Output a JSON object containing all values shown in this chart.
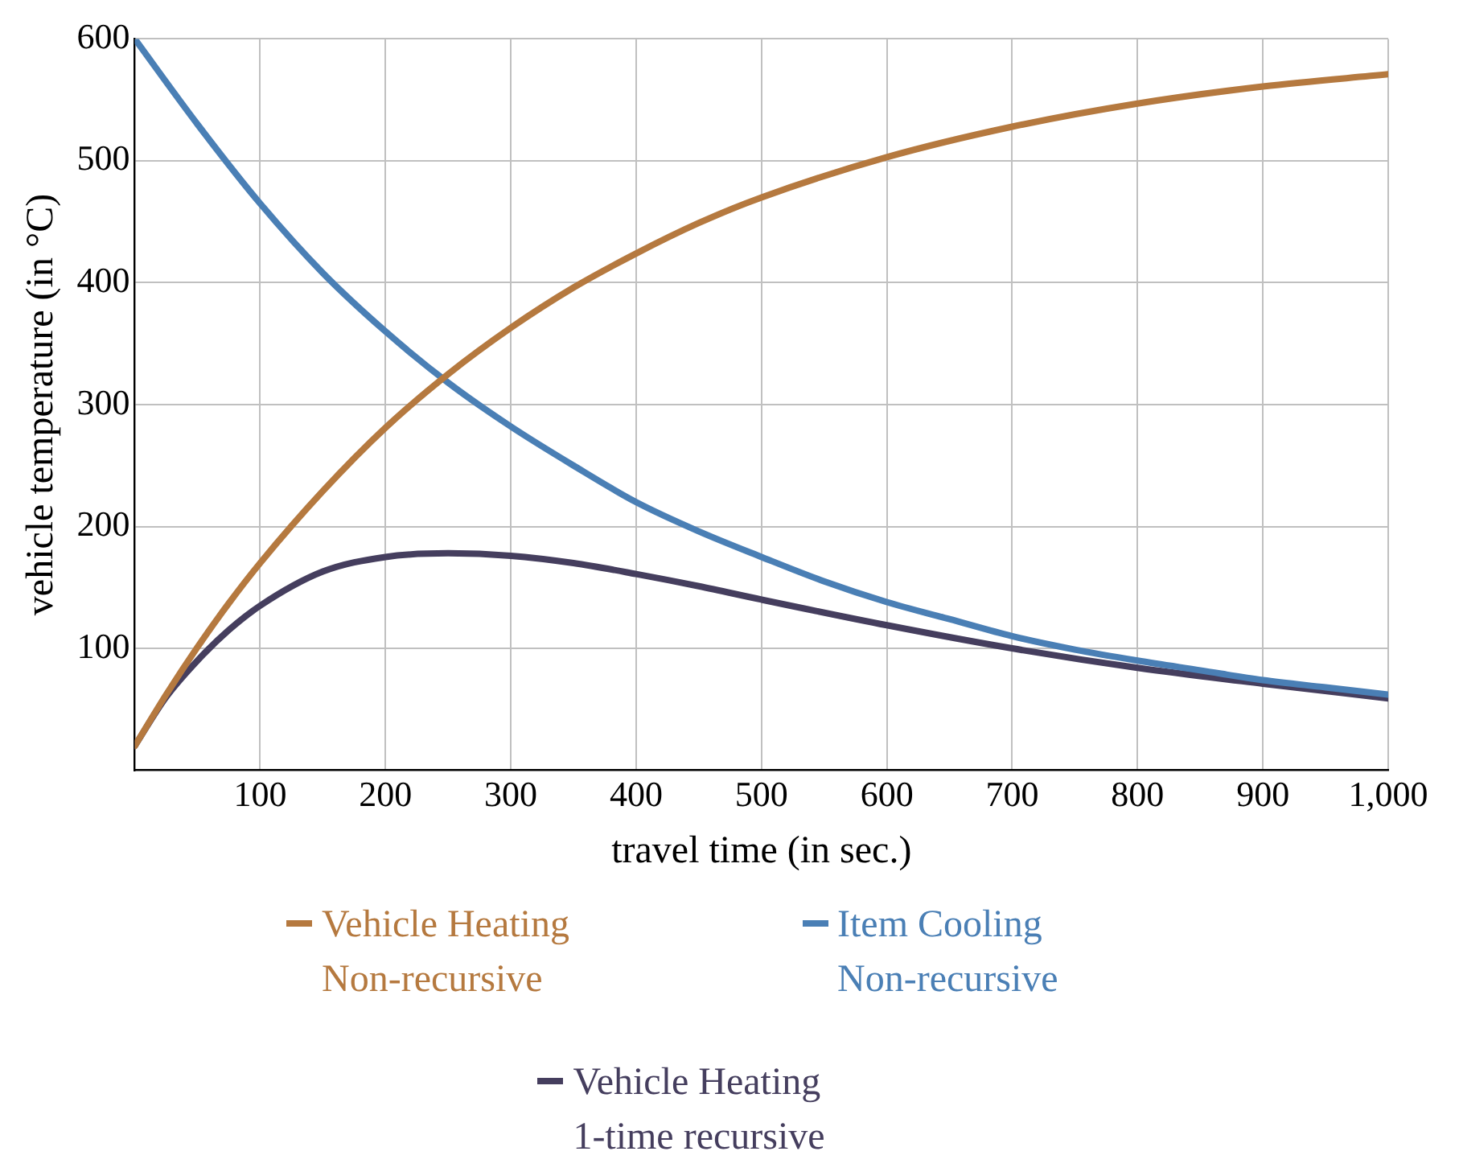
{
  "chart_data": {
    "type": "line",
    "xlabel": "travel time (in sec.)",
    "ylabel": "vehicle temperature (in °C)",
    "xlim": [
      0,
      1000
    ],
    "ylim": [
      0,
      600
    ],
    "xticks": [
      100,
      200,
      300,
      400,
      500,
      600,
      700,
      800,
      900,
      {
        "value": 1000,
        "label": "1,000"
      }
    ],
    "yticks": [
      100,
      200,
      300,
      400,
      500,
      600
    ],
    "grid": true,
    "legend": "bottom",
    "marker": "none",
    "line_style": "solid",
    "series": [
      {
        "name": "Vehicle Heating\nNon-recursive",
        "color": "#b5793f",
        "x": [
          0,
          25,
          50,
          75,
          100,
          150,
          200,
          250,
          300,
          350,
          400,
          450,
          500,
          600,
          700,
          800,
          900,
          1000
        ],
        "values": [
          20,
          62,
          101,
          137,
          170,
          229,
          281,
          325,
          363,
          396,
          424,
          449,
          470,
          503,
          528,
          547,
          561,
          571
        ]
      },
      {
        "name": "Item Cooling\nNon-recursive",
        "color": "#4a7fb5",
        "x": [
          0,
          50,
          100,
          150,
          200,
          250,
          300,
          350,
          400,
          450,
          500,
          550,
          600,
          650,
          700,
          750,
          800,
          850,
          900,
          950,
          1000
        ],
        "values": [
          600,
          530,
          465,
          408,
          360,
          318,
          282,
          250,
          220,
          196,
          175,
          155,
          138,
          124,
          110,
          99,
          90,
          82,
          74,
          68,
          62
        ]
      },
      {
        "name": "Vehicle Heating\n1-time recursive",
        "color": "#453e5e",
        "x": [
          0,
          25,
          50,
          75,
          100,
          150,
          200,
          250,
          300,
          350,
          400,
          450,
          500,
          600,
          700,
          800,
          900,
          1000
        ],
        "values": [
          20,
          60,
          90,
          115,
          135,
          163,
          175,
          178,
          176,
          170,
          161,
          151,
          140,
          119,
          100,
          84,
          71,
          59
        ]
      }
    ]
  }
}
